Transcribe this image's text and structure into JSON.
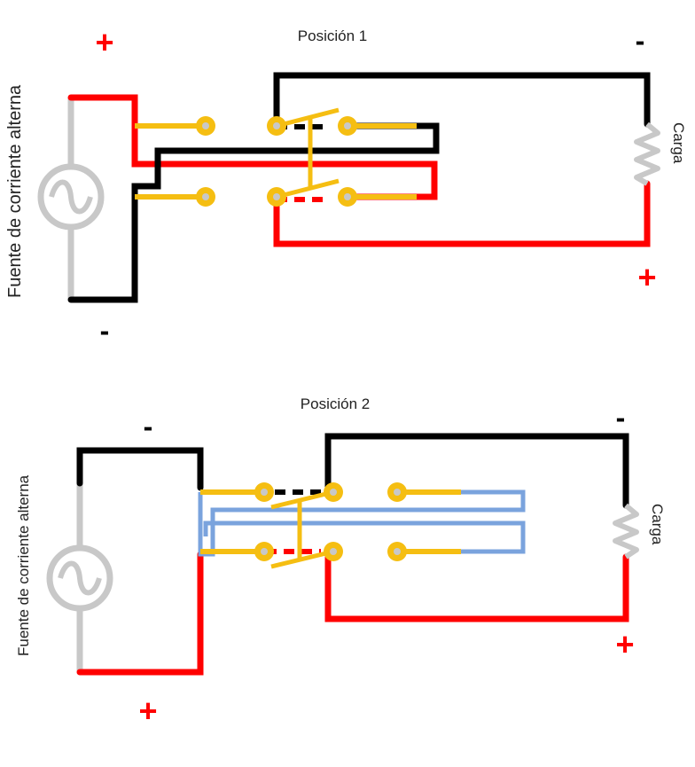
{
  "diagram_1": {
    "title": "Posición 1",
    "source_label": "Fuente de corriente alterna",
    "load_label": "Carga",
    "source_plus": "+",
    "source_minus": "-",
    "load_plus": "+",
    "load_minus": "-"
  },
  "diagram_2": {
    "title": "Posición  2",
    "source_label": "Fuente de corriente alterna",
    "load_label": "Carga",
    "source_plus": "+",
    "source_minus": "-",
    "load_plus": "+",
    "load_minus": "-"
  },
  "colors": {
    "positive": "#ff0000",
    "negative": "#000000",
    "switch": "#f5be12",
    "crossed": "#7aa3dd",
    "source": "#c8c8c8"
  }
}
